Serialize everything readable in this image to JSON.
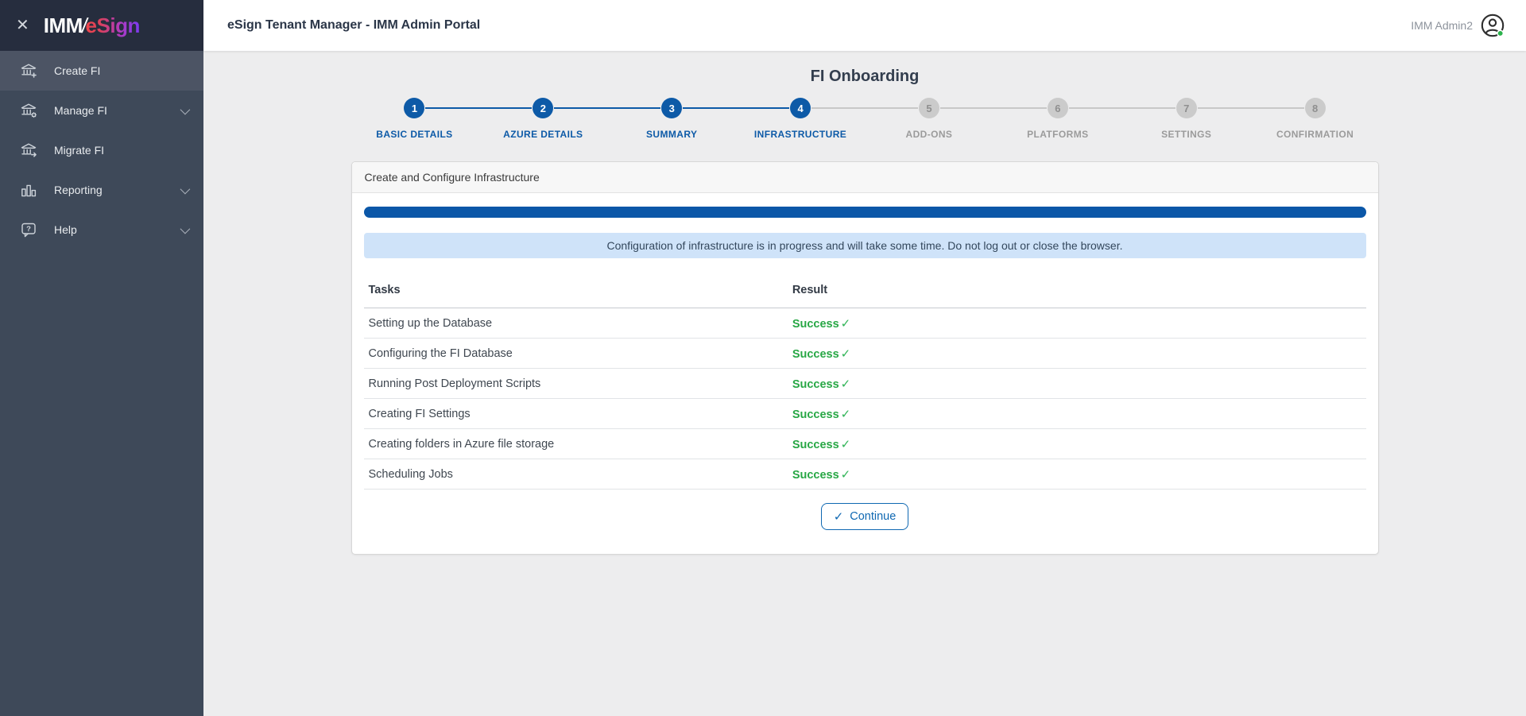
{
  "sidebar": {
    "logo": {
      "imm": "IMM",
      "slash": "/",
      "esign": "eSign"
    },
    "close_glyph": "✕",
    "items": [
      {
        "label": "Create FI",
        "icon": "bank-plus-icon",
        "active": true,
        "chevron": false
      },
      {
        "label": "Manage FI",
        "icon": "bank-gear-icon",
        "active": false,
        "chevron": true
      },
      {
        "label": "Migrate FI",
        "icon": "bank-arrow-icon",
        "active": false,
        "chevron": false
      },
      {
        "label": "Reporting",
        "icon": "bar-chart-icon",
        "active": false,
        "chevron": true
      },
      {
        "label": "Help",
        "icon": "help-bubble-icon",
        "active": false,
        "chevron": true
      }
    ]
  },
  "header": {
    "title": "eSign Tenant Manager - IMM Admin Portal",
    "user": "IMM Admin2"
  },
  "page": {
    "title": "FI Onboarding"
  },
  "stepper": {
    "steps": [
      {
        "number": "1",
        "label": "BASIC DETAILS",
        "state": "active"
      },
      {
        "number": "2",
        "label": "AZURE DETAILS",
        "state": "active"
      },
      {
        "number": "3",
        "label": "SUMMARY",
        "state": "active"
      },
      {
        "number": "4",
        "label": "INFRASTRUCTURE",
        "state": "active"
      },
      {
        "number": "5",
        "label": "ADD-ONS",
        "state": "inactive"
      },
      {
        "number": "6",
        "label": "PLATFORMS",
        "state": "inactive"
      },
      {
        "number": "7",
        "label": "SETTINGS",
        "state": "inactive"
      },
      {
        "number": "8",
        "label": "CONFIRMATION",
        "state": "inactive"
      }
    ]
  },
  "card": {
    "title": "Create and Configure Infrastructure",
    "progress_percent": 100,
    "banner": "Configuration of infrastructure is in progress and will take some time. Do not log out or close the browser.",
    "check_glyph": "✓",
    "table": {
      "headers": {
        "tasks": "Tasks",
        "result": "Result"
      },
      "rows": [
        {
          "task": "Setting up the Database",
          "result": "Success"
        },
        {
          "task": "Configuring the FI Database",
          "result": "Success"
        },
        {
          "task": "Running Post Deployment Scripts",
          "result": "Success"
        },
        {
          "task": "Creating FI Settings",
          "result": "Success"
        },
        {
          "task": "Creating folders in Azure file storage",
          "result": "Success"
        },
        {
          "task": "Scheduling Jobs",
          "result": "Success"
        }
      ]
    },
    "continue_label": "Continue"
  },
  "colors": {
    "accent_blue": "#0d5aa7",
    "progress_blue": "#0b57a8",
    "success_green": "#28a745",
    "banner_bg": "#cfe3f9",
    "sidebar_bg": "#3e4959",
    "sidebar_active_bg": "#4c5464",
    "logo_band_bg": "#262d3e",
    "content_bg": "#ededee",
    "logo_gradient_start": "#f0454a",
    "logo_gradient_end": "#7b3bf2"
  }
}
